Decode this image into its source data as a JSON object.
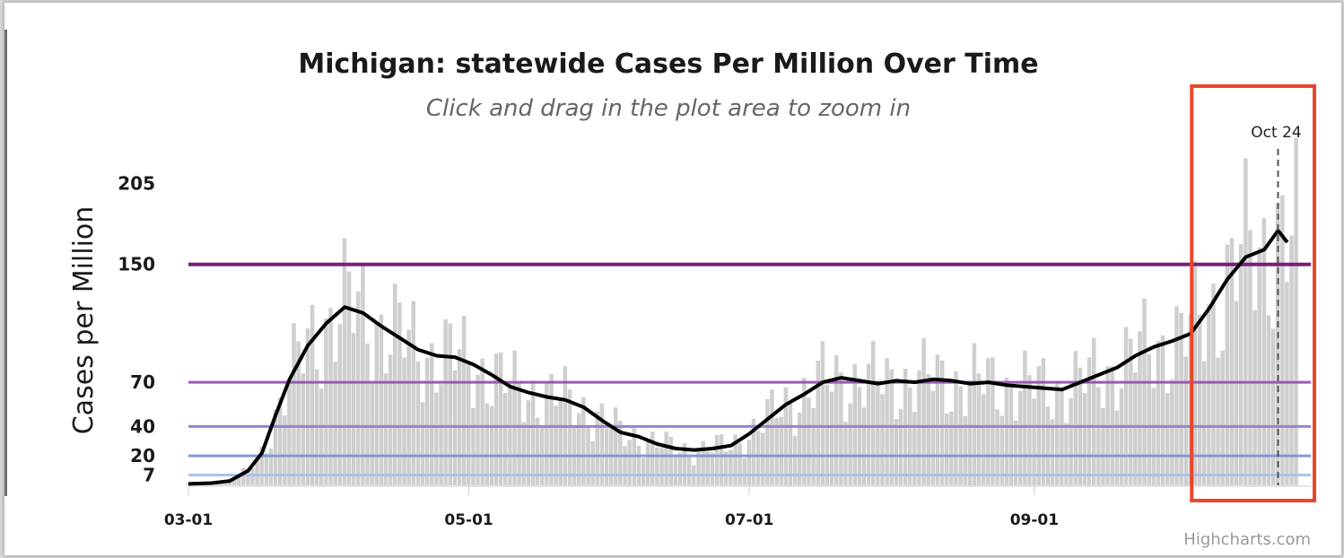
{
  "chart_data": {
    "type": "bar",
    "title": "Michigan: statewide Cases Per Million Over Time",
    "subtitle": "Click and drag in the plot area to zoom in",
    "ylabel": "Cases per Million",
    "xlabel": "",
    "ylim": [
      0,
      215
    ],
    "x_start_date": "2020-03-01",
    "x_end_date": "2020-10-28",
    "yticks": [
      7,
      20,
      40,
      70,
      150,
      205
    ],
    "xticks": [
      "03-01",
      "05-01",
      "07-01",
      "09-01"
    ],
    "xtick_dates": [
      "2020-03-01",
      "2020-05-01",
      "2020-07-01",
      "2020-09-01"
    ],
    "grid": false,
    "thresholds": [
      {
        "value": 150,
        "color": "#7a1f7a"
      },
      {
        "value": 70,
        "color": "#9b59b6"
      },
      {
        "value": 40,
        "color": "#9b7fd1"
      },
      {
        "value": 20,
        "color": "#7f9ad8"
      },
      {
        "value": 7,
        "color": "#a9c4ea"
      }
    ],
    "annotation": {
      "label": "Oct 24",
      "date": "2020-10-24"
    },
    "highlight_box": {
      "from_date": "2020-10-06",
      "to_date": "2020-10-28",
      "color": "#e8472a"
    },
    "series": [
      {
        "type": "line",
        "color": "#000000",
        "points": [
          [
            "2020-03-01",
            1
          ],
          [
            "2020-03-06",
            1.5
          ],
          [
            "2020-03-10",
            3
          ],
          [
            "2020-03-14",
            10
          ],
          [
            "2020-03-17",
            22
          ],
          [
            "2020-03-20",
            48
          ],
          [
            "2020-03-23",
            72
          ],
          [
            "2020-03-27",
            95
          ],
          [
            "2020-03-31",
            110
          ],
          [
            "2020-04-04",
            121
          ],
          [
            "2020-04-08",
            117
          ],
          [
            "2020-04-12",
            108
          ],
          [
            "2020-04-16",
            100
          ],
          [
            "2020-04-20",
            92
          ],
          [
            "2020-04-24",
            88
          ],
          [
            "2020-04-28",
            87
          ],
          [
            "2020-05-02",
            82
          ],
          [
            "2020-05-06",
            75
          ],
          [
            "2020-05-10",
            67
          ],
          [
            "2020-05-14",
            63
          ],
          [
            "2020-05-18",
            60
          ],
          [
            "2020-05-22",
            58
          ],
          [
            "2020-05-26",
            53
          ],
          [
            "2020-05-30",
            44
          ],
          [
            "2020-06-03",
            36
          ],
          [
            "2020-06-07",
            33
          ],
          [
            "2020-06-11",
            28
          ],
          [
            "2020-06-15",
            25
          ],
          [
            "2020-06-19",
            24
          ],
          [
            "2020-06-23",
            25
          ],
          [
            "2020-06-27",
            27
          ],
          [
            "2020-07-01",
            35
          ],
          [
            "2020-07-05",
            45
          ],
          [
            "2020-07-09",
            55
          ],
          [
            "2020-07-13",
            62
          ],
          [
            "2020-07-17",
            70
          ],
          [
            "2020-07-21",
            73
          ],
          [
            "2020-07-25",
            71
          ],
          [
            "2020-07-29",
            69
          ],
          [
            "2020-08-02",
            71
          ],
          [
            "2020-08-06",
            70
          ],
          [
            "2020-08-10",
            72
          ],
          [
            "2020-08-14",
            71
          ],
          [
            "2020-08-18",
            69
          ],
          [
            "2020-08-22",
            70
          ],
          [
            "2020-08-26",
            68
          ],
          [
            "2020-08-30",
            67
          ],
          [
            "2020-09-03",
            66
          ],
          [
            "2020-09-07",
            65
          ],
          [
            "2020-09-11",
            70
          ],
          [
            "2020-09-15",
            75
          ],
          [
            "2020-09-19",
            80
          ],
          [
            "2020-09-23",
            88
          ],
          [
            "2020-09-27",
            94
          ],
          [
            "2020-10-01",
            98
          ],
          [
            "2020-10-05",
            103
          ],
          [
            "2020-10-09",
            120
          ],
          [
            "2020-10-13",
            140
          ],
          [
            "2020-10-17",
            155
          ],
          [
            "2020-10-21",
            160
          ],
          [
            "2020-10-24",
            173
          ],
          [
            "2020-10-26",
            165
          ]
        ]
      }
    ]
  },
  "credit": "Highcharts.com"
}
